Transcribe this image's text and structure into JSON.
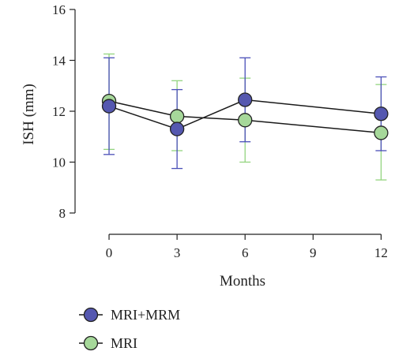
{
  "chart_data": {
    "type": "line",
    "x": [
      0,
      3,
      6,
      12
    ],
    "xticks": [
      0,
      3,
      6,
      9,
      12
    ],
    "xlim": [
      -1.5,
      12.3
    ],
    "yticks": [
      8,
      10,
      12,
      14,
      16
    ],
    "ylim": [
      8,
      16
    ],
    "xlabel": "Months",
    "ylabel": "ISH (mm)",
    "grid": false,
    "legend_position": "bottom-left",
    "series": [
      {
        "name": "MRI+MRM",
        "values": [
          12.2,
          11.3,
          12.45,
          11.9
        ],
        "err_low": [
          10.3,
          9.75,
          10.8,
          10.45
        ],
        "err_high": [
          14.1,
          12.85,
          14.1,
          13.35
        ],
        "marker_color": "#5558b0",
        "error_color": "#4a4fb8"
      },
      {
        "name": "MRI",
        "values": [
          12.4,
          11.8,
          11.65,
          11.15
        ],
        "err_low": [
          10.5,
          10.45,
          10.0,
          9.3
        ],
        "err_high": [
          14.25,
          13.2,
          13.3,
          13.05
        ],
        "marker_color": "#a6d89a",
        "error_color": "#93d47f"
      }
    ]
  }
}
